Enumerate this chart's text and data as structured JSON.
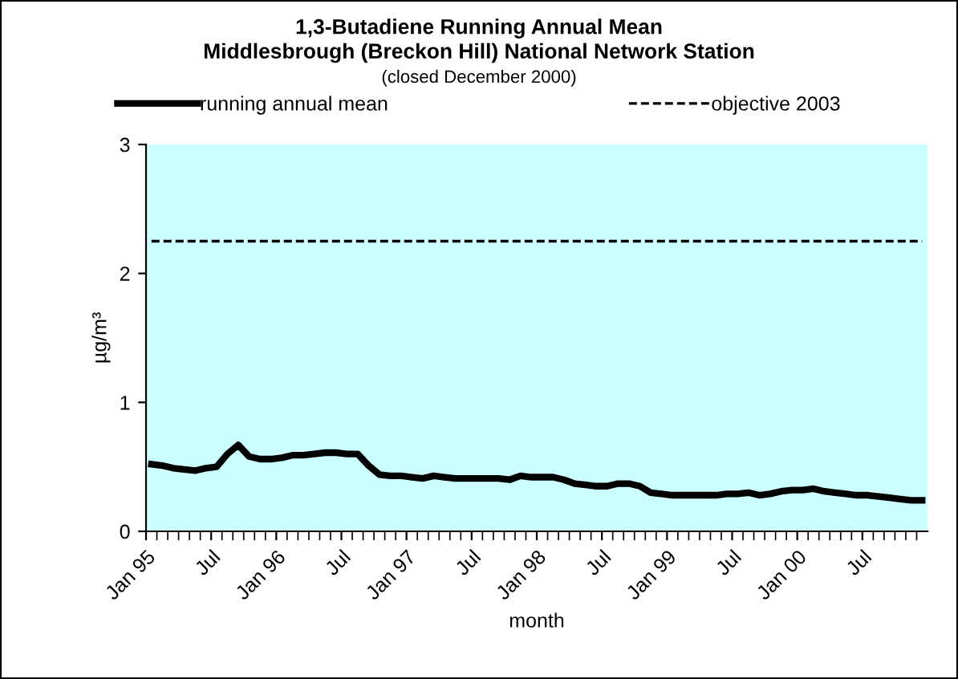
{
  "chart_data": {
    "type": "line",
    "title": "1,3-Butadiene Running Annual Mean\nMiddlesbrough (Breckon Hill) National Network Station",
    "subtitle": "(closed December 2000)",
    "xlabel": "month",
    "ylabel": "µg/m³",
    "categories": [
      "Jan 95",
      null,
      null,
      null,
      null,
      null,
      "Jul",
      null,
      null,
      null,
      null,
      null,
      "Jan 96",
      null,
      null,
      null,
      null,
      null,
      "Jul",
      null,
      null,
      null,
      null,
      null,
      "Jan 97",
      null,
      null,
      null,
      null,
      null,
      "Jul",
      null,
      null,
      null,
      null,
      null,
      "Jan 98",
      null,
      null,
      null,
      null,
      null,
      "Jul",
      null,
      null,
      null,
      null,
      null,
      "Jan 99",
      null,
      null,
      null,
      null,
      null,
      "Jul",
      null,
      null,
      null,
      null,
      null,
      "Jan 00",
      null,
      null,
      null,
      null,
      null,
      "Jul",
      null,
      null,
      null,
      null,
      null
    ],
    "series": [
      {
        "name": "running annual mean",
        "color": "#000000",
        "line_style": "solid",
        "values": [
          0.52,
          0.51,
          0.49,
          0.48,
          0.47,
          0.49,
          0.5,
          0.6,
          0.67,
          0.58,
          0.56,
          0.56,
          0.57,
          0.59,
          0.59,
          0.6,
          0.61,
          0.61,
          0.6,
          0.6,
          0.51,
          0.44,
          0.43,
          0.43,
          0.42,
          0.41,
          0.43,
          0.42,
          0.41,
          0.41,
          0.41,
          0.41,
          0.41,
          0.4,
          0.43,
          0.42,
          0.42,
          0.42,
          0.4,
          0.37,
          0.36,
          0.35,
          0.35,
          0.37,
          0.37,
          0.35,
          0.3,
          0.29,
          0.28,
          0.28,
          0.28,
          0.28,
          0.28,
          0.29,
          0.29,
          0.3,
          0.28,
          0.29,
          0.31,
          0.32,
          0.32,
          0.33,
          0.31,
          0.3,
          0.29,
          0.28,
          0.28,
          0.27,
          0.26,
          0.25,
          0.24,
          0.24
        ]
      },
      {
        "name": "objective 2003",
        "color": "#000000",
        "line_style": "dashed",
        "values": [
          2.25,
          2.25,
          2.25,
          2.25,
          2.25,
          2.25,
          2.25,
          2.25,
          2.25,
          2.25,
          2.25,
          2.25,
          2.25,
          2.25,
          2.25,
          2.25,
          2.25,
          2.25,
          2.25,
          2.25,
          2.25,
          2.25,
          2.25,
          2.25,
          2.25,
          2.25,
          2.25,
          2.25,
          2.25,
          2.25,
          2.25,
          2.25,
          2.25,
          2.25,
          2.25,
          2.25,
          2.25,
          2.25,
          2.25,
          2.25,
          2.25,
          2.25,
          2.25,
          2.25,
          2.25,
          2.25,
          2.25,
          2.25,
          2.25,
          2.25,
          2.25,
          2.25,
          2.25,
          2.25,
          2.25,
          2.25,
          2.25,
          2.25,
          2.25,
          2.25,
          2.25,
          2.25,
          2.25,
          2.25,
          2.25,
          2.25,
          2.25,
          2.25,
          2.25,
          2.25,
          2.25,
          2.25
        ]
      }
    ],
    "ylim": [
      0,
      3
    ],
    "yticks": [
      0,
      1,
      2,
      3
    ],
    "grid": false,
    "legend": "top",
    "marker": "none"
  }
}
